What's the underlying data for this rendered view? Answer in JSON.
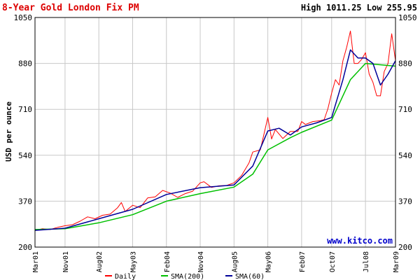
{
  "chart_data": {
    "type": "line",
    "title": "8-Year Gold London Fix PM",
    "high_low": "High 1011.25 Low 255.95",
    "ylabel": "USD per ounce",
    "ylim": [
      200,
      1050
    ],
    "yticks": [
      200,
      370,
      540,
      710,
      880,
      1050
    ],
    "x_ticks": [
      {
        "x": "2001-03",
        "label": "Mar01"
      },
      {
        "x": "2001-11",
        "label": "Nov01"
      },
      {
        "x": "2002-08",
        "label": "Aug02"
      },
      {
        "x": "2003-05",
        "label": "May03"
      },
      {
        "x": "2004-02",
        "label": "Feb04"
      },
      {
        "x": "2004-11",
        "label": "Nov04"
      },
      {
        "x": "2005-08",
        "label": "Aug05"
      },
      {
        "x": "2006-05",
        "label": "May06"
      },
      {
        "x": "2007-02",
        "label": "Feb07"
      },
      {
        "x": "2007-10",
        "label": "Oct07"
      },
      {
        "x": "2008-07",
        "label": "Jul08"
      },
      {
        "x": "2009-03",
        "label": "Mar09"
      }
    ],
    "grid": true,
    "watermark": "www.kitco.com",
    "legend_position": "bottom",
    "series": [
      {
        "name": "Daily",
        "color": "#ff0000",
        "x": [
          "2001-03",
          "2001-05",
          "2001-07",
          "2001-09",
          "2001-11",
          "2002-01",
          "2002-03",
          "2002-05",
          "2002-07",
          "2002-09",
          "2002-11",
          "2003-01",
          "2003-02",
          "2003-03",
          "2003-05",
          "2003-07",
          "2003-09",
          "2003-11",
          "2004-01",
          "2004-03",
          "2004-05",
          "2004-07",
          "2004-09",
          "2004-11",
          "2004-12",
          "2005-02",
          "2005-04",
          "2005-06",
          "2005-08",
          "2005-10",
          "2005-12",
          "2006-01",
          "2006-03",
          "2006-05",
          "2006-06",
          "2006-07",
          "2006-09",
          "2006-11",
          "2007-01",
          "2007-02",
          "2007-03",
          "2007-05",
          "2007-07",
          "2007-08",
          "2007-09",
          "2007-10",
          "2007-11",
          "2007-12",
          "2008-01",
          "2008-02",
          "2008-03",
          "2008-04",
          "2008-05",
          "2008-06",
          "2008-07",
          "2008-08",
          "2008-09",
          "2008-10",
          "2008-11",
          "2008-12",
          "2009-01",
          "2009-02",
          "2009-03"
        ],
        "values": [
          262,
          268,
          265,
          273,
          279,
          283,
          296,
          312,
          305,
          318,
          322,
          346,
          365,
          332,
          355,
          346,
          382,
          386,
          410,
          400,
          384,
          398,
          407,
          438,
          442,
          421,
          427,
          428,
          438,
          465,
          512,
          552,
          560,
          680,
          600,
          635,
          602,
          628,
          628,
          665,
          654,
          665,
          668,
          672,
          712,
          770,
          820,
          800,
          890,
          940,
          1000,
          880,
          880,
          895,
          920,
          840,
          810,
          760,
          760,
          850,
          880,
          990,
          890
        ]
      },
      {
        "name": "SMA(200)",
        "color": "#00c000",
        "x": [
          "2001-03",
          "2001-11",
          "2002-08",
          "2003-05",
          "2004-02",
          "2004-11",
          "2005-08",
          "2006-01",
          "2006-05",
          "2006-11",
          "2007-02",
          "2007-10",
          "2008-03",
          "2008-07",
          "2009-03"
        ],
        "values": [
          265,
          268,
          290,
          320,
          370,
          398,
          422,
          470,
          560,
          605,
          625,
          670,
          820,
          880,
          870
        ]
      },
      {
        "name": "SMA(60)",
        "color": "#000099",
        "x": [
          "2001-03",
          "2001-11",
          "2002-08",
          "2003-05",
          "2004-02",
          "2004-11",
          "2005-08",
          "2006-01",
          "2006-05",
          "2006-08",
          "2006-11",
          "2007-02",
          "2007-06",
          "2007-10",
          "2008-01",
          "2008-03",
          "2008-05",
          "2008-07",
          "2008-09",
          "2008-11",
          "2009-01",
          "2009-03"
        ],
        "values": [
          262,
          270,
          305,
          340,
          395,
          420,
          430,
          500,
          630,
          640,
          615,
          645,
          660,
          680,
          820,
          930,
          900,
          900,
          880,
          800,
          840,
          890
        ]
      }
    ]
  }
}
